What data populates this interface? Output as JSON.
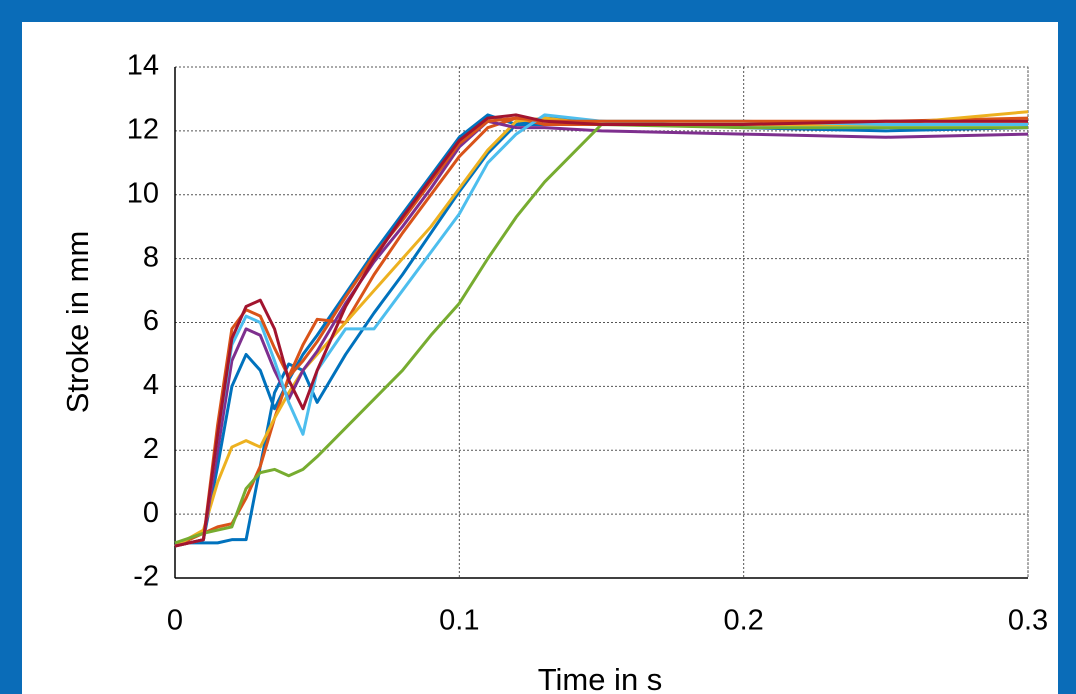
{
  "chart_data": {
    "type": "line",
    "x_label": "Time in s",
    "y_label": "Stroke in mm",
    "xlim": [
      0,
      0.3
    ],
    "ylim": [
      -2,
      14
    ],
    "xticks": [
      0,
      0.1,
      0.2,
      0.3
    ],
    "yticks": [
      -2,
      0,
      2,
      4,
      6,
      8,
      10,
      12,
      14
    ],
    "grid": true,
    "x": [
      0,
      0.01,
      0.015,
      0.02,
      0.025,
      0.03,
      0.035,
      0.04,
      0.045,
      0.05,
      0.06,
      0.07,
      0.08,
      0.09,
      0.1,
      0.11,
      0.12,
      0.13,
      0.15,
      0.2,
      0.25,
      0.3
    ],
    "series": [
      {
        "color": "#0072BD",
        "values": [
          -1,
          -0.8,
          1.5,
          4,
          5,
          4.5,
          3.3,
          4.2,
          5,
          5.6,
          6.9,
          8.2,
          9.4,
          10.6,
          11.8,
          12.5,
          12.2,
          12.2,
          12.2,
          12.2,
          12.2,
          12.2
        ]
      },
      {
        "color": "#0072BD",
        "values": [
          -0.9,
          -0.9,
          -0.9,
          -0.8,
          -0.8,
          1.5,
          3.8,
          4.7,
          4.5,
          3.5,
          5.0,
          6.3,
          7.5,
          8.8,
          10.1,
          11.3,
          12.2,
          12.4,
          12.3,
          12.1,
          12.0,
          12.1
        ]
      },
      {
        "color": "#D95319",
        "values": [
          -1,
          -0.6,
          -0.4,
          -0.3,
          0.5,
          1.5,
          3,
          4.3,
          5.3,
          6.1,
          6.0,
          7.5,
          8.8,
          10.0,
          11.2,
          12.1,
          12.4,
          12.2,
          12.2,
          12.2,
          12.3,
          12.4
        ]
      },
      {
        "color": "#EDB120",
        "values": [
          -1,
          -0.5,
          1,
          2.1,
          2.3,
          2.1,
          3,
          3.8,
          4.5,
          5.0,
          6.0,
          7.0,
          8.0,
          9.0,
          10.2,
          11.4,
          12.3,
          12.4,
          12.2,
          12.2,
          12.2,
          12.6
        ]
      },
      {
        "color": "#7E2F8E",
        "values": [
          -1,
          -0.8,
          2,
          4.8,
          5.8,
          5.6,
          4.5,
          3.6,
          4.5,
          5.1,
          6.6,
          7.9,
          9.0,
          10.2,
          11.5,
          12.3,
          12.1,
          12.1,
          12.0,
          11.9,
          11.8,
          11.9
        ]
      },
      {
        "color": "#77AC30",
        "values": [
          -0.9,
          -0.6,
          -0.5,
          -0.4,
          0.8,
          1.3,
          1.4,
          1.2,
          1.4,
          1.8,
          2.7,
          3.6,
          4.5,
          5.6,
          6.6,
          8.0,
          9.3,
          10.4,
          12.2,
          12.1,
          12.1,
          12.1
        ]
      },
      {
        "color": "#4DBEEE",
        "values": [
          -1,
          -0.8,
          2.5,
          5.3,
          6.2,
          6.0,
          4.8,
          3.5,
          2.5,
          4.5,
          5.8,
          5.8,
          7.0,
          8.2,
          9.4,
          11.0,
          11.9,
          12.5,
          12.3,
          12.3,
          12.2,
          12.2
        ]
      },
      {
        "color": "#D95319",
        "values": [
          -1,
          -0.8,
          2.8,
          5.8,
          6.4,
          6.2,
          5.2,
          4.3,
          4.8,
          5.4,
          6.8,
          8.1,
          9.2,
          10.4,
          11.6,
          12.3,
          12.4,
          12.3,
          12.3,
          12.3,
          12.3,
          12.3
        ]
      },
      {
        "color": "#A2142F",
        "values": [
          -1,
          -0.8,
          2.5,
          5.5,
          6.5,
          6.7,
          5.8,
          4.2,
          3.3,
          4.5,
          6.5,
          8.0,
          9.3,
          10.5,
          11.7,
          12.4,
          12.5,
          12.3,
          12.2,
          12.2,
          12.3,
          12.3
        ]
      }
    ]
  }
}
